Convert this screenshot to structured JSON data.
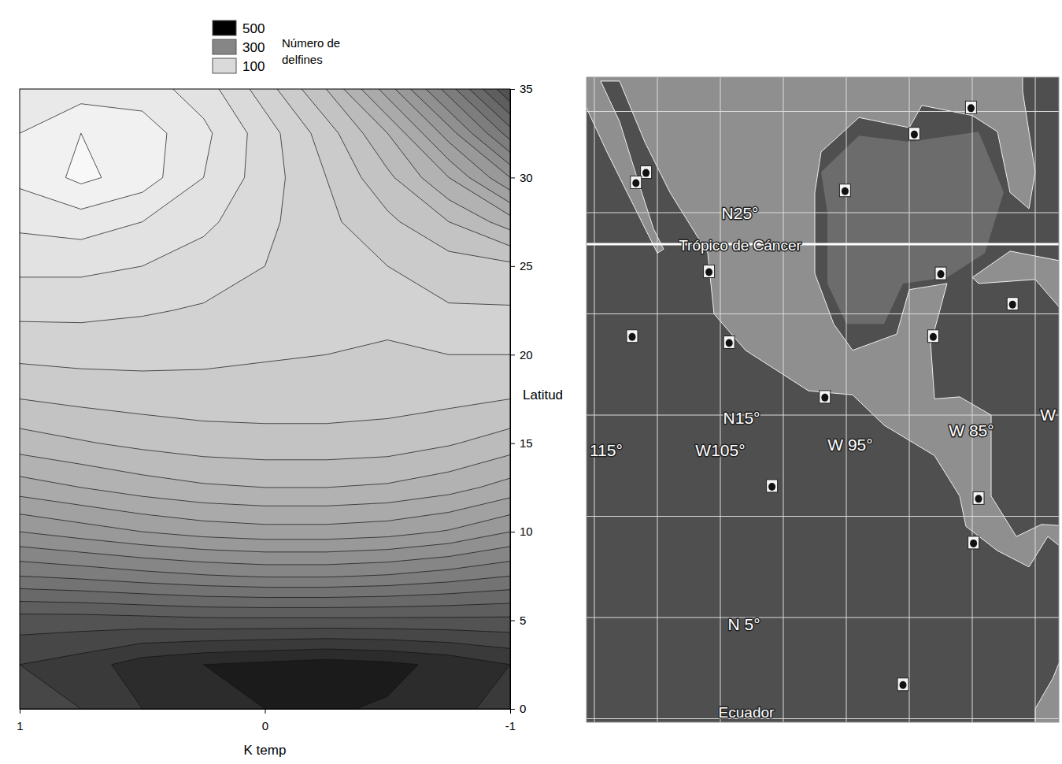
{
  "chart_data": [
    {
      "type": "contour",
      "x_label": "K temp",
      "y_label": "Latitud",
      "x": [
        1,
        0.75,
        0.5,
        0.25,
        0,
        -0.25,
        -0.5,
        -0.75,
        -1
      ],
      "y": [
        0,
        2.5,
        5,
        7.5,
        10,
        12.5,
        15,
        17.5,
        20,
        22.5,
        25,
        27.5,
        30,
        32.5,
        35
      ],
      "z": [
        [
          430,
          440,
          460,
          475,
          480,
          482,
          478,
          468,
          450
        ],
        [
          440,
          450,
          470,
          480,
          485,
          490,
          485,
          475,
          460
        ],
        [
          410,
          410,
          408,
          405,
          405,
          405,
          405,
          405,
          405
        ],
        [
          340,
          335,
          328,
          322,
          318,
          318,
          322,
          330,
          340
        ],
        [
          280,
          270,
          260,
          252,
          248,
          248,
          252,
          262,
          280
        ],
        [
          230,
          220,
          210,
          203,
          200,
          200,
          203,
          212,
          228
        ],
        [
          190,
          182,
          175,
          170,
          168,
          168,
          170,
          178,
          190
        ],
        [
          160,
          155,
          152,
          150,
          150,
          150,
          152,
          155,
          160
        ],
        [
          135,
          133,
          133,
          135,
          138,
          140,
          142,
          140,
          140
        ],
        [
          115,
          115,
          118,
          122,
          128,
          132,
          136,
          138,
          138
        ],
        [
          95,
          95,
          100,
          110,
          120,
          130,
          140,
          150,
          155
        ],
        [
          75,
          70,
          80,
          95,
          115,
          135,
          155,
          180,
          210
        ],
        [
          55,
          35,
          50,
          80,
          110,
          140,
          175,
          220,
          280
        ],
        [
          60,
          40,
          50,
          75,
          110,
          150,
          200,
          270,
          350
        ],
        [
          80,
          70,
          70,
          90,
          130,
          180,
          250,
          330,
          420
        ]
      ],
      "levels": [
        20,
        40,
        60,
        80,
        100,
        120,
        140,
        160,
        180,
        200,
        220,
        240,
        260,
        280,
        300,
        320,
        340,
        360,
        380,
        400,
        420,
        440,
        460,
        480,
        500
      ],
      "color_range": [
        0,
        500
      ],
      "colors": [
        "#ffffff",
        "#000000"
      ],
      "xlim": [
        1,
        -1
      ],
      "xticks": [
        1,
        0,
        -1
      ],
      "ylim": [
        0,
        35
      ],
      "yticks": [
        0,
        5,
        10,
        15,
        20,
        25,
        30,
        35
      ],
      "legend_title": "Número de delfines",
      "legend_values": [
        500,
        300,
        100
      ]
    },
    {
      "type": "map",
      "parallels": [
        0,
        5,
        10,
        15,
        20,
        25,
        30,
        35
      ],
      "meridians": [
        -115,
        -110,
        -105,
        -100,
        -95,
        -90,
        -85,
        -80
      ],
      "tropic": 23.44,
      "labels": [
        "N25°",
        "Trópico de Cáncer",
        "N15°",
        "W105°",
        "W 95°",
        "W 85°",
        "115°",
        "W",
        "N 5°",
        "Ecuador"
      ],
      "sightings": {
        "lon": [
          -110.9,
          -111.7,
          -89.6,
          -95.1,
          -85.1,
          -105.9,
          -104.3,
          -112.0,
          -87.5,
          -88.1,
          -81.8,
          -96.7,
          -100.9,
          -84.5,
          -84.9,
          -90.5
        ],
        "lat": [
          27.0,
          26.5,
          28.9,
          26.1,
          30.2,
          22.1,
          18.6,
          18.9,
          22.0,
          18.9,
          20.5,
          15.9,
          11.5,
          10.9,
          8.7,
          1.7
        ]
      }
    }
  ]
}
